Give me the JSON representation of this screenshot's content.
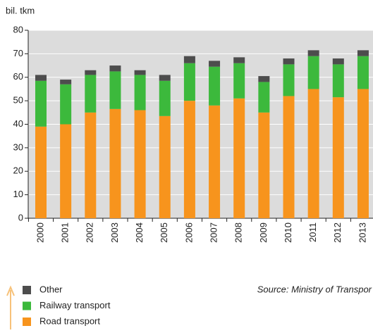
{
  "chart_data": {
    "type": "stacked_bar",
    "y_label": "bil. tkm",
    "categories": [
      "2000",
      "2001",
      "2002",
      "2003",
      "2004",
      "2005",
      "2006",
      "2007",
      "2008",
      "2009",
      "2010",
      "2011",
      "2012",
      "2013"
    ],
    "series": [
      {
        "name": "Road transport",
        "color": "#f7941d",
        "values": [
          39,
          40,
          45,
          46.5,
          46,
          43.5,
          50,
          48,
          51,
          45,
          52,
          55,
          51.5,
          55
        ]
      },
      {
        "name": "Railway transport",
        "color": "#3cb93c",
        "values": [
          19.5,
          17,
          16,
          16,
          15,
          15,
          16,
          16.5,
          15,
          13,
          13.5,
          14,
          14,
          14
        ]
      },
      {
        "name": "Other",
        "color": "#4d4d4d",
        "values": [
          2.5,
          2,
          2,
          2.5,
          2,
          2.5,
          3,
          2.5,
          2.5,
          2.5,
          2.5,
          2.5,
          2.5,
          2.5
        ]
      }
    ],
    "ylim": [
      0,
      80
    ],
    "yticks": [
      0,
      10,
      20,
      30,
      40,
      50,
      60,
      70,
      80
    ],
    "source": "Source: Ministry of Transpor"
  }
}
